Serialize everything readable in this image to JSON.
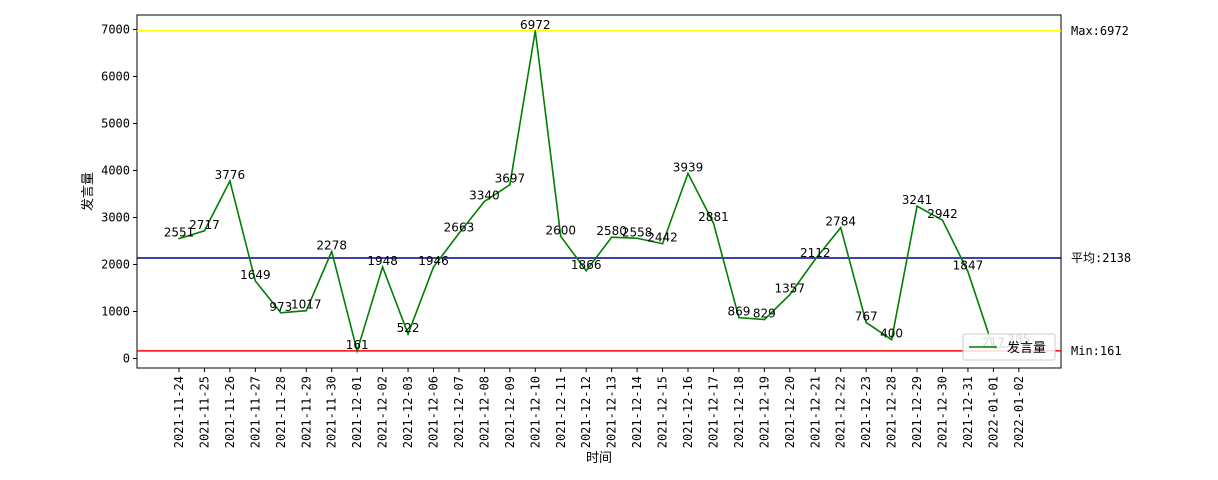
{
  "chart_data": {
    "type": "line",
    "xlabel": "时间",
    "ylabel": "发言量",
    "x": [
      "2021-11-24",
      "2021-11-25",
      "2021-11-26",
      "2021-11-27",
      "2021-11-28",
      "2021-11-29",
      "2021-11-30",
      "2021-12-01",
      "2021-12-02",
      "2021-12-03",
      "2021-12-06",
      "2021-12-07",
      "2021-12-08",
      "2021-12-09",
      "2021-12-10",
      "2021-12-11",
      "2021-12-12",
      "2021-12-13",
      "2021-12-14",
      "2021-12-15",
      "2021-12-16",
      "2021-12-17",
      "2021-12-18",
      "2021-12-19",
      "2021-12-20",
      "2021-12-21",
      "2021-12-22",
      "2021-12-23",
      "2021-12-28",
      "2021-12-29",
      "2021-12-30",
      "2021-12-31",
      "2022-01-01",
      "2022-01-02"
    ],
    "series": [
      {
        "name": "发言量",
        "color": "#008000",
        "values": [
          2551,
          2717,
          3776,
          1649,
          973,
          1017,
          2278,
          161,
          1948,
          522,
          1946,
          2663,
          3340,
          3697,
          6972,
          2600,
          1866,
          2580,
          2558,
          2442,
          3939,
          2881,
          869,
          829,
          1357,
          2112,
          2784,
          767,
          400,
          3241,
          2942,
          1847,
          217,
          285
        ],
        "labels": [
          "2551",
          "2717",
          "3776",
          "1649",
          "973",
          "1017",
          "2278",
          "161",
          "1948",
          "522",
          "1946",
          "2663",
          "3340",
          "3697",
          "6972",
          "2600",
          "1866",
          "2580",
          "2558",
          "2442",
          "3939",
          "2881",
          "869",
          "829",
          "1357",
          "2112",
          "2784",
          "767",
          "400",
          "3241",
          "2942",
          "1847",
          "217",
          "285"
        ]
      }
    ],
    "ylim": [
      -200,
      7320
    ],
    "yticks": [
      "0",
      "1000",
      "2000",
      "3000",
      "4000",
      "5000",
      "6000",
      "7000"
    ],
    "reference_lines": [
      {
        "value": 6972,
        "label": "Max:6972",
        "color": "#ffff00"
      },
      {
        "value": 2138,
        "label": "平均:2138",
        "color": "#00008b"
      },
      {
        "value": 161,
        "label": "Min:161",
        "color": "#ff0000"
      }
    ],
    "legend": {
      "position": "lower-right",
      "label": "发言量"
    },
    "grid": false
  }
}
